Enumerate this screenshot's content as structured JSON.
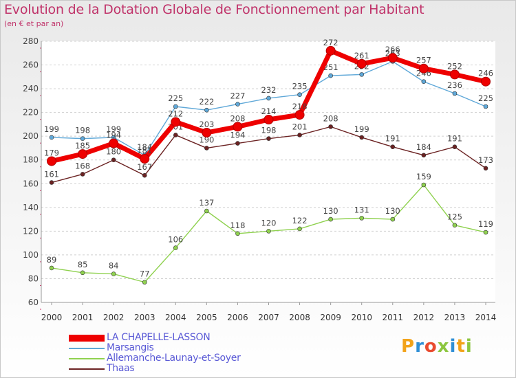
{
  "title": "Evolution de la Dotation Globale de Fonctionnement par Habitant",
  "subtitle": "(en € et par an)",
  "logo": {
    "text": [
      "P",
      "r",
      "o",
      "x",
      "i",
      "t",
      "i"
    ]
  },
  "chart_data": {
    "type": "line",
    "x": [
      "2000",
      "2001",
      "2002",
      "2003",
      "2004",
      "2005",
      "2006",
      "2007",
      "2008",
      "2009",
      "2010",
      "2011",
      "2012",
      "2013",
      "2014"
    ],
    "yticks": [
      60,
      80,
      100,
      120,
      140,
      160,
      180,
      200,
      220,
      240,
      260,
      280
    ],
    "ylim": [
      60,
      280
    ],
    "grid": "horizontal, dashed",
    "legend_position": "bottom",
    "series": [
      {
        "name": "Allemanche-Launay-et-Soyer",
        "color": "#8fd14f",
        "values": [
          89,
          85,
          84,
          77,
          106,
          137,
          118,
          120,
          122,
          130,
          131,
          130,
          159,
          125,
          119
        ]
      },
      {
        "name": "Thaas",
        "color": "#6b2222",
        "values": [
          161,
          168,
          180,
          167,
          201,
          190,
          194,
          198,
          201,
          208,
          199,
          191,
          184,
          191,
          173
        ]
      },
      {
        "name": "Marsangis",
        "color": "#5fa8d8",
        "values": [
          199,
          198,
          199,
          184,
          225,
          222,
          227,
          232,
          235,
          251,
          252,
          263,
          246,
          236,
          225
        ]
      },
      {
        "name": "LA CHAPELLE-LASSON",
        "color": "#ee0000",
        "values": [
          179,
          185,
          194,
          181,
          212,
          203,
          208,
          214,
          218,
          272,
          261,
          266,
          257,
          252,
          246
        ]
      }
    ],
    "legend_order": [
      "LA CHAPELLE-LASSON",
      "Marsangis",
      "Allemanche-Launay-et-Soyer",
      "Thaas"
    ]
  }
}
